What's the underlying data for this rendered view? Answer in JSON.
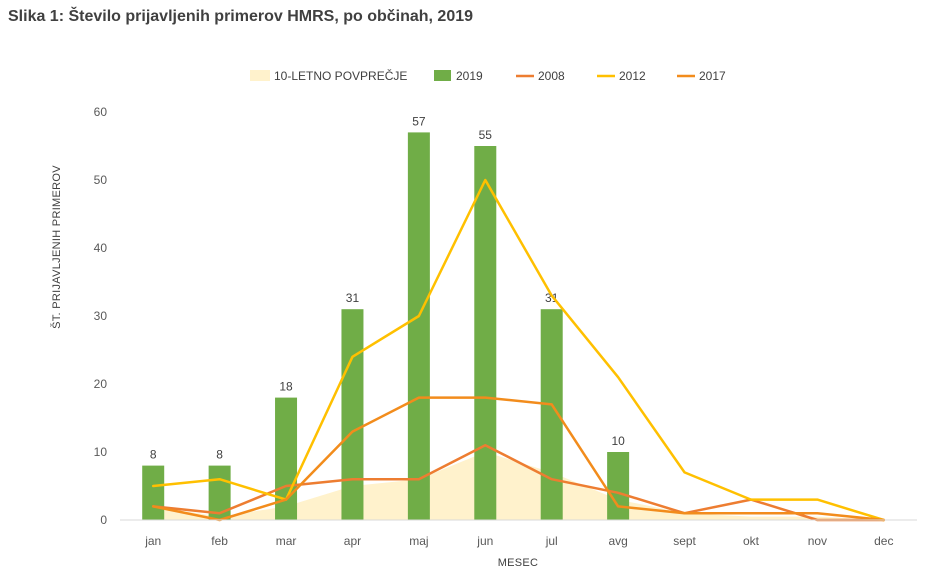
{
  "chart_data": {
    "type": "bar",
    "title": "Slika 1: Število prijavljenih primerov HMRS, po občinah, 2019",
    "xlabel": "MESEC",
    "ylabel": "ŠT. PRIJAVLJENIH PRIMEROV",
    "ylim": [
      0,
      60
    ],
    "yticks": [
      0,
      10,
      20,
      30,
      40,
      50,
      60
    ],
    "grid": false,
    "legend_position": "top",
    "categories": [
      "jan",
      "feb",
      "mar",
      "apr",
      "maj",
      "jun",
      "jul",
      "avg",
      "sept",
      "okt",
      "nov",
      "dec"
    ],
    "series": [
      {
        "name": "10-LETNO POVPREČJE",
        "kind": "area",
        "color": "#FFF2CC",
        "values": [
          2,
          0.5,
          2,
          5,
          6,
          10,
          7,
          3,
          1,
          0.5,
          0.5,
          0
        ]
      },
      {
        "name": "2019",
        "kind": "bar",
        "color": "#70AD47",
        "values": [
          8,
          8,
          18,
          31,
          57,
          55,
          31,
          10,
          0,
          0,
          0,
          0
        ],
        "labels": [
          "8",
          "8",
          "18",
          "31",
          "57",
          "55",
          "31",
          "10",
          "",
          "",
          "",
          ""
        ]
      },
      {
        "name": "2008",
        "kind": "line",
        "color": "#ED7D31",
        "values": [
          2,
          1,
          5,
          6,
          6,
          11,
          6,
          4,
          1,
          3,
          0,
          0
        ]
      },
      {
        "name": "2012",
        "kind": "line",
        "color": "#FFC000",
        "values": [
          5,
          6,
          3,
          24,
          30,
          50,
          33,
          21,
          7,
          3,
          3,
          0
        ]
      },
      {
        "name": "2017",
        "kind": "line",
        "color": "#F28C1C",
        "values": [
          2,
          0,
          3,
          13,
          18,
          18,
          17,
          2,
          1,
          1,
          1,
          0
        ]
      }
    ]
  }
}
